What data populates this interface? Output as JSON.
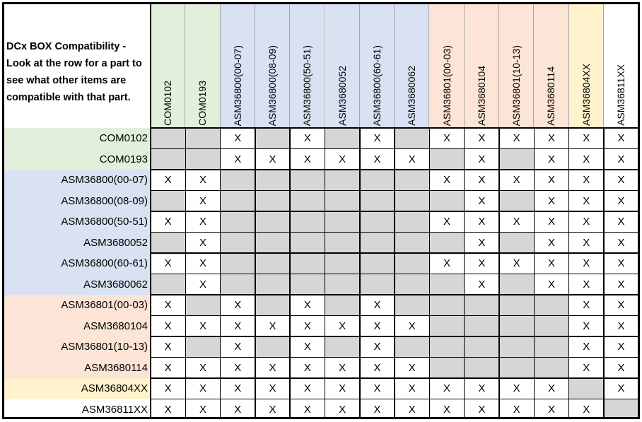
{
  "title": "DCx BOX Compatibility  - Look at the row for a part to see what other items are compatible with that part.",
  "group_colors": {
    "com": "#e2efda",
    "asm36800": "#d9e1f2",
    "asm36801": "#fce4d6",
    "asm36804": "#fff2cc",
    "asm36811": "#ffffff"
  },
  "gray_color": "#d6d6d6",
  "mark": "X",
  "parts": [
    {
      "name": "COM0102",
      "group": "com"
    },
    {
      "name": "COM0193",
      "group": "com"
    },
    {
      "name": "ASM36800(00-07)",
      "group": "asm36800"
    },
    {
      "name": "ASM36800(08-09)",
      "group": "asm36800"
    },
    {
      "name": "ASM36800(50-51)",
      "group": "asm36800"
    },
    {
      "name": "ASM3680052",
      "group": "asm36800"
    },
    {
      "name": "ASM36800(60-61)",
      "group": "asm36800"
    },
    {
      "name": "ASM3680062",
      "group": "asm36800"
    },
    {
      "name": "ASM36801(00-03)",
      "group": "asm36801"
    },
    {
      "name": "ASM3680104",
      "group": "asm36801"
    },
    {
      "name": "ASM36801(10-13)",
      "group": "asm36801"
    },
    {
      "name": "ASM3680114",
      "group": "asm36801"
    },
    {
      "name": "ASM36804XX",
      "group": "asm36804"
    },
    {
      "name": "ASM36811XX",
      "group": "asm36811"
    }
  ],
  "matrix": [
    [
      "G",
      "G",
      "X",
      "G",
      "X",
      "G",
      "X",
      "G",
      "X",
      "X",
      "X",
      "X",
      "X",
      "X"
    ],
    [
      "G",
      "G",
      "X",
      "X",
      "X",
      "X",
      "X",
      "X",
      "G",
      "X",
      "G",
      "X",
      "X",
      "X"
    ],
    [
      "X",
      "X",
      "G",
      "G",
      "G",
      "G",
      "G",
      "G",
      "X",
      "X",
      "X",
      "X",
      "X",
      "X"
    ],
    [
      "G",
      "X",
      "G",
      "G",
      "G",
      "G",
      "G",
      "G",
      "G",
      "X",
      "G",
      "X",
      "X",
      "X"
    ],
    [
      "X",
      "X",
      "G",
      "G",
      "G",
      "G",
      "G",
      "G",
      "X",
      "X",
      "X",
      "X",
      "X",
      "X"
    ],
    [
      "G",
      "X",
      "G",
      "G",
      "G",
      "G",
      "G",
      "G",
      "G",
      "X",
      "G",
      "X",
      "X",
      "X"
    ],
    [
      "X",
      "X",
      "G",
      "G",
      "G",
      "G",
      "G",
      "G",
      "X",
      "X",
      "X",
      "X",
      "X",
      "X"
    ],
    [
      "G",
      "X",
      "G",
      "G",
      "G",
      "G",
      "G",
      "G",
      "G",
      "X",
      "G",
      "X",
      "X",
      "X"
    ],
    [
      "X",
      "G",
      "X",
      "G",
      "X",
      "G",
      "X",
      "G",
      "G",
      "G",
      "G",
      "G",
      "X",
      "X"
    ],
    [
      "X",
      "X",
      "X",
      "X",
      "X",
      "X",
      "X",
      "X",
      "G",
      "G",
      "G",
      "G",
      "X",
      "X"
    ],
    [
      "X",
      "G",
      "X",
      "G",
      "X",
      "G",
      "X",
      "G",
      "G",
      "G",
      "G",
      "G",
      "X",
      "X"
    ],
    [
      "X",
      "X",
      "X",
      "X",
      "X",
      "X",
      "X",
      "X",
      "G",
      "G",
      "G",
      "G",
      "X",
      "X"
    ],
    [
      "X",
      "X",
      "X",
      "X",
      "X",
      "X",
      "X",
      "X",
      "X",
      "X",
      "X",
      "X",
      "G",
      "X"
    ],
    [
      "X",
      "X",
      "X",
      "X",
      "X",
      "X",
      "X",
      "X",
      "X",
      "X",
      "X",
      "X",
      "X",
      "G"
    ]
  ]
}
